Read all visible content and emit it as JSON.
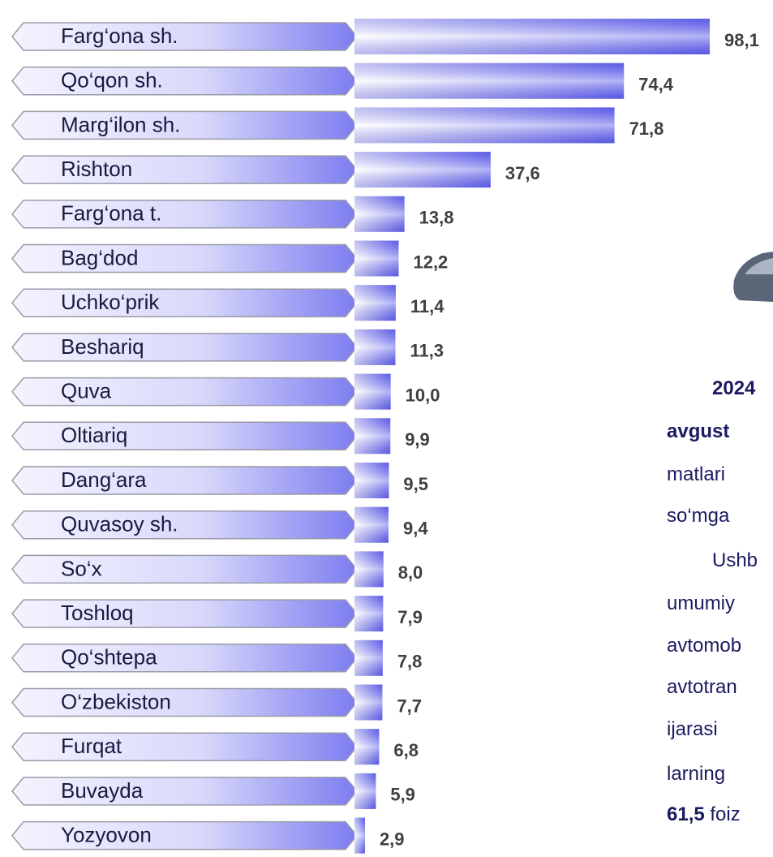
{
  "chart_data": {
    "type": "bar",
    "orientation": "horizontal",
    "color": "#6f6ff0",
    "categories": [
      "Farg‘ona sh.",
      "Qo‘qon sh.",
      "Marg‘ilon sh.",
      "Rishton",
      "Farg‘ona t.",
      "Bag‘dod",
      "Uchko‘prik",
      "Beshariq",
      "Quva",
      "Oltiariq",
      "Dang‘ara",
      "Quvasoy sh.",
      "So‘x",
      "Toshloq",
      "Qo‘shtepa",
      "O‘zbekiston",
      "Furqat",
      "Buvayda",
      "Yozyovon"
    ],
    "values": [
      98.1,
      74.4,
      71.8,
      37.6,
      13.8,
      12.2,
      11.4,
      11.3,
      10.0,
      9.9,
      9.5,
      9.4,
      8.0,
      7.9,
      7.8,
      7.7,
      6.8,
      5.9,
      2.9
    ],
    "value_labels": [
      "98,1",
      "74,4",
      "71,8",
      "37,6",
      "13,8",
      "12,2",
      "11,4",
      "11,3",
      "10,0",
      "9,9",
      "9,5",
      "9,4",
      "8,0",
      "7,9",
      "7,8",
      "7,7",
      "6,8",
      "5,9",
      "2,9"
    ]
  },
  "side_text": [
    [
      {
        "text": "2024",
        "bold": true
      }
    ],
    [
      {
        "text": "avgust",
        "bold": true
      }
    ],
    [
      {
        "text": "matlari",
        "bold": false
      }
    ],
    [
      {
        "text": "so‘mga",
        "bold": false
      }
    ],
    [
      {
        "text": "Ushb",
        "bold": false
      }
    ],
    [
      {
        "text": "umumiy",
        "bold": false
      }
    ],
    [
      {
        "text": "avtomob",
        "bold": false
      }
    ],
    [
      {
        "text": "avtotran",
        "bold": false
      }
    ],
    [
      {
        "text": "ijarasi",
        "bold": false
      }
    ],
    [
      {
        "text": "larning",
        "bold": false
      }
    ],
    [
      {
        "text": "61,5",
        "bold": true
      },
      {
        "text": " foiz",
        "bold": false
      }
    ]
  ]
}
